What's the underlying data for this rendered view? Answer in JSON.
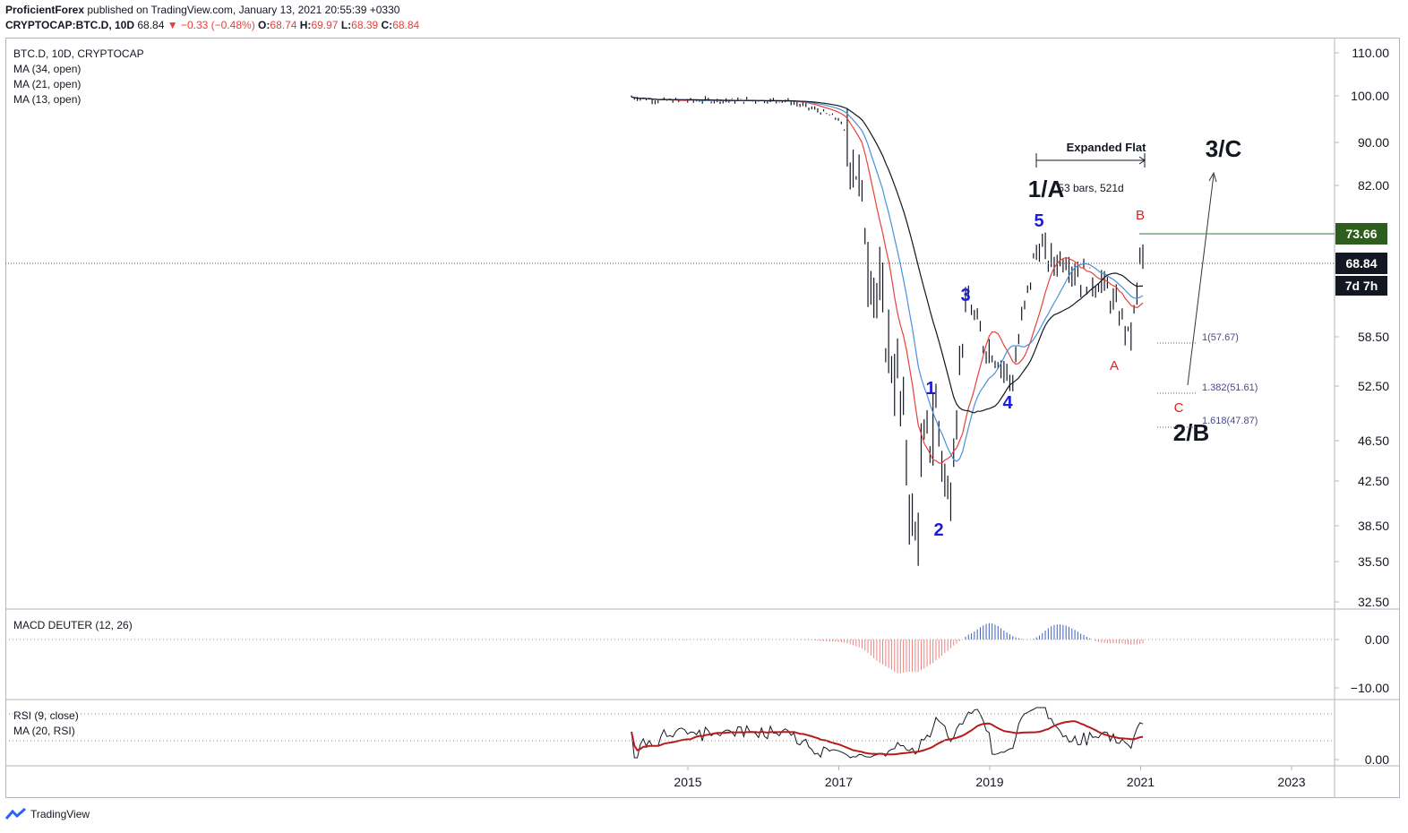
{
  "header": {
    "publisher": "ProficientForex",
    "published_text": "published on TradingView.com, January 13, 2021 20:55:39 +0330",
    "symbol_text": "CRYPTOCAP:BTC.D, 10D",
    "last": "68.84",
    "change_text": "−0.33 (−0.48%)",
    "o_label": "O:",
    "o": "68.74",
    "h_label": "H:",
    "h": "69.97",
    "l_label": "L:",
    "l": "68.39",
    "c_label": "C:",
    "c": "68.84"
  },
  "legend": {
    "title": "BTC.D, 10D, CRYPTOCAP",
    "ma34": "MA (34, open)",
    "ma21": "MA (21, open)",
    "ma13": "MA (13, open)",
    "macd": "MACD DEUTER (12, 26)",
    "rsi": "RSI (9, close)",
    "rsi_ma": "MA (20, RSI)"
  },
  "footer": {
    "brand": "TradingView"
  },
  "colors": {
    "ma13": "#e8413c",
    "ma21": "#4a90d9",
    "ma34": "#131722",
    "macd_pos": "#3a5fc8",
    "macd_neg": "#f08080",
    "wave": "#1b1bd8",
    "abc": "#e81c1c",
    "rsi_ma": "#b71c1c"
  },
  "chart_data": {
    "type": "line",
    "price_axis": {
      "ticks": [
        "110.00",
        "100.00",
        "90.00",
        "82.00",
        "73.66",
        "68.84",
        "58.50",
        "52.50",
        "46.50",
        "42.50",
        "38.50",
        "35.50",
        "32.50"
      ]
    },
    "price_badges": {
      "high": "73.66",
      "last": "68.84",
      "countdown": "7d 7h"
    },
    "macd_axis": {
      "ticks": [
        "0.00",
        "−10.00"
      ]
    },
    "rsi_axis": {
      "ticks": [
        "0.00"
      ]
    },
    "time_axis": {
      "ticks": [
        "2015",
        "2017",
        "2019",
        "2021",
        "2023"
      ]
    },
    "anchors": [
      [
        2014.15,
        100
      ],
      [
        2014.6,
        99
      ],
      [
        2015.5,
        99
      ],
      [
        2016.3,
        99
      ],
      [
        2016.7,
        97
      ],
      [
        2017.0,
        95
      ],
      [
        2017.2,
        88
      ],
      [
        2017.4,
        70
      ],
      [
        2017.6,
        60
      ],
      [
        2017.8,
        52
      ],
      [
        2017.9,
        45
      ],
      [
        2018.0,
        36
      ],
      [
        2018.1,
        44
      ],
      [
        2018.3,
        50
      ],
      [
        2018.45,
        40
      ],
      [
        2018.6,
        55
      ],
      [
        2018.7,
        64
      ],
      [
        2018.9,
        58
      ],
      [
        2019.1,
        56
      ],
      [
        2019.3,
        53
      ],
      [
        2019.45,
        62
      ],
      [
        2019.6,
        70
      ],
      [
        2019.65,
        72
      ],
      [
        2019.8,
        69
      ],
      [
        2020.0,
        70
      ],
      [
        2020.2,
        67
      ],
      [
        2020.5,
        66
      ],
      [
        2020.8,
        60
      ],
      [
        2020.85,
        58
      ],
      [
        2020.95,
        64
      ],
      [
        2021.0,
        72
      ],
      [
        2021.03,
        69
      ]
    ],
    "wave_labels": [
      {
        "t": "1",
        "x": 2018.0,
        "y": 51.6
      },
      {
        "t": "2",
        "x": 2018.1,
        "y": 38.3
      },
      {
        "t": "3",
        "x": 2018.5,
        "y": 64.5
      },
      {
        "t": "4",
        "x": 2018.7,
        "y": 50.6
      },
      {
        "t": "5",
        "x": 2019.2,
        "y": 74.3
      }
    ],
    "abc_labels": [
      {
        "t": "A",
        "x": 2019.62,
        "y": 55.0
      },
      {
        "t": "B",
        "x": 2019.64,
        "y": 75.5
      },
      {
        "t": "C",
        "x": 2019.8,
        "y": 50.0
      }
    ],
    "big_labels": [
      {
        "t": "1/A",
        "x": 2019.1,
        "y": 79.0
      },
      {
        "t": "3/C",
        "x": 2019.95,
        "y": 86.8
      },
      {
        "t": "2/B",
        "x": 2019.9,
        "y": 47.6
      }
    ],
    "annotations": {
      "expanded_flat": "Expanded Flat",
      "bars_text": "53 bars, 521d",
      "fib1": "1(57.67)",
      "fib2": "1.382(51.61)",
      "fib3": "1.618(47.87)"
    },
    "xlabel": "",
    "ylabel": ""
  }
}
